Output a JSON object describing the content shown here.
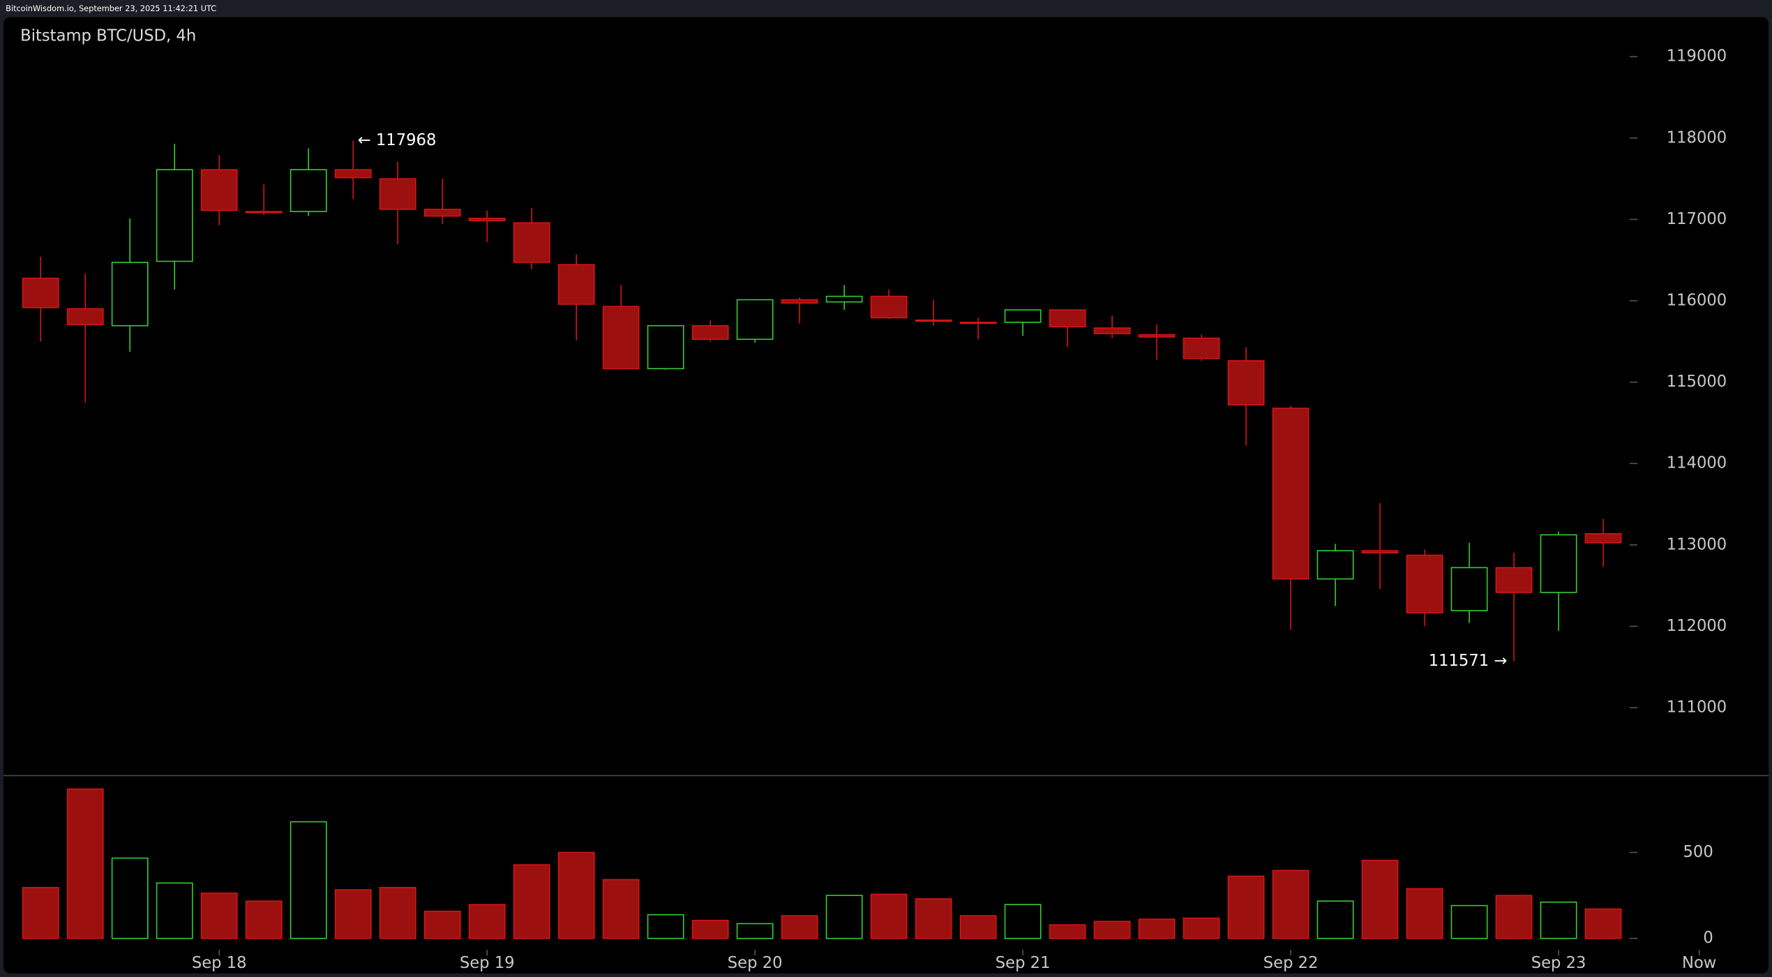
{
  "header": "BitcoinWisdom.io, September 23, 2025 11:42:21 UTC",
  "chart_data": {
    "type": "candlestick",
    "title": "Bitstamp BTC/USD, 4h",
    "up_color": "#33cc33",
    "down_color": "#d41515",
    "down_fill": "#9c1010",
    "open": [
      116277,
      115902,
      115694,
      116485,
      117611,
      117097,
      117097,
      117611,
      117499,
      117124,
      117013,
      116958,
      116444,
      115930,
      115166,
      115694,
      115527,
      116013,
      115986,
      116055,
      115763,
      115736,
      115736,
      115888,
      115666,
      115583,
      115541,
      115263,
      114680,
      112582,
      112929,
      112874,
      112193,
      112721,
      112416,
      113138
    ],
    "high": [
      116541,
      116333,
      117013,
      117930,
      117791,
      117430,
      117874,
      117968,
      117708,
      117499,
      117110,
      117138,
      116569,
      116194,
      115694,
      115763,
      116013,
      116041,
      116194,
      116138,
      116013,
      115791,
      115888,
      115888,
      115819,
      115708,
      115583,
      115430,
      114707,
      113013,
      113513,
      112943,
      113027,
      112902,
      113166,
      113318
    ],
    "low": [
      115499,
      114749,
      115374,
      116138,
      116930,
      117055,
      117041,
      117249,
      116694,
      116944,
      116722,
      116388,
      115513,
      115166,
      115152,
      115499,
      115485,
      115722,
      115888,
      115777,
      115694,
      115527,
      115569,
      115430,
      115541,
      115277,
      115263,
      114221,
      111957,
      112249,
      112457,
      112000,
      112041,
      111571,
      111943,
      112735
    ],
    "close": [
      115916,
      115708,
      116472,
      117611,
      117111,
      117083,
      117611,
      117513,
      117124,
      117041,
      116985,
      116472,
      115958,
      115166,
      115694,
      115527,
      116013,
      115972,
      116055,
      115791,
      115749,
      115722,
      115888,
      115680,
      115597,
      115555,
      115291,
      114721,
      112582,
      112929,
      112902,
      112166,
      112721,
      112416,
      113124,
      113027
    ],
    "volume": [
      296,
      868,
      467,
      322,
      263,
      217,
      678,
      283,
      296,
      158,
      197,
      428,
      500,
      342,
      138,
      105,
      86,
      132,
      250,
      257,
      230,
      132,
      197,
      79,
      99,
      112,
      118,
      362,
      395,
      217,
      454,
      289,
      191,
      250,
      211,
      171
    ],
    "xlim": [
      -0.91,
      38.78
    ],
    "xticks": [
      {
        "value": 4,
        "label": "Sep 18"
      },
      {
        "value": 10,
        "label": "Sep 19"
      },
      {
        "value": 16,
        "label": "Sep 20"
      },
      {
        "value": 22,
        "label": "Sep 21"
      },
      {
        "value": 28,
        "label": "Sep 22"
      },
      {
        "value": 34,
        "label": "Sep 23"
      },
      {
        "value": 37.15,
        "label": "Now"
      }
    ],
    "ylim": [
      110165,
      119486
    ],
    "yticks": [
      111000,
      112000,
      113000,
      114000,
      115000,
      116000,
      117000,
      118000,
      119000
    ],
    "volume_ylim": [
      0,
      920
    ],
    "volume_yticks": [
      0,
      500
    ],
    "annotations": [
      {
        "label": "← 117968",
        "value": 117968,
        "x": 7
      },
      {
        "label": "111571 →",
        "value": 111571,
        "x": 33
      }
    ]
  }
}
